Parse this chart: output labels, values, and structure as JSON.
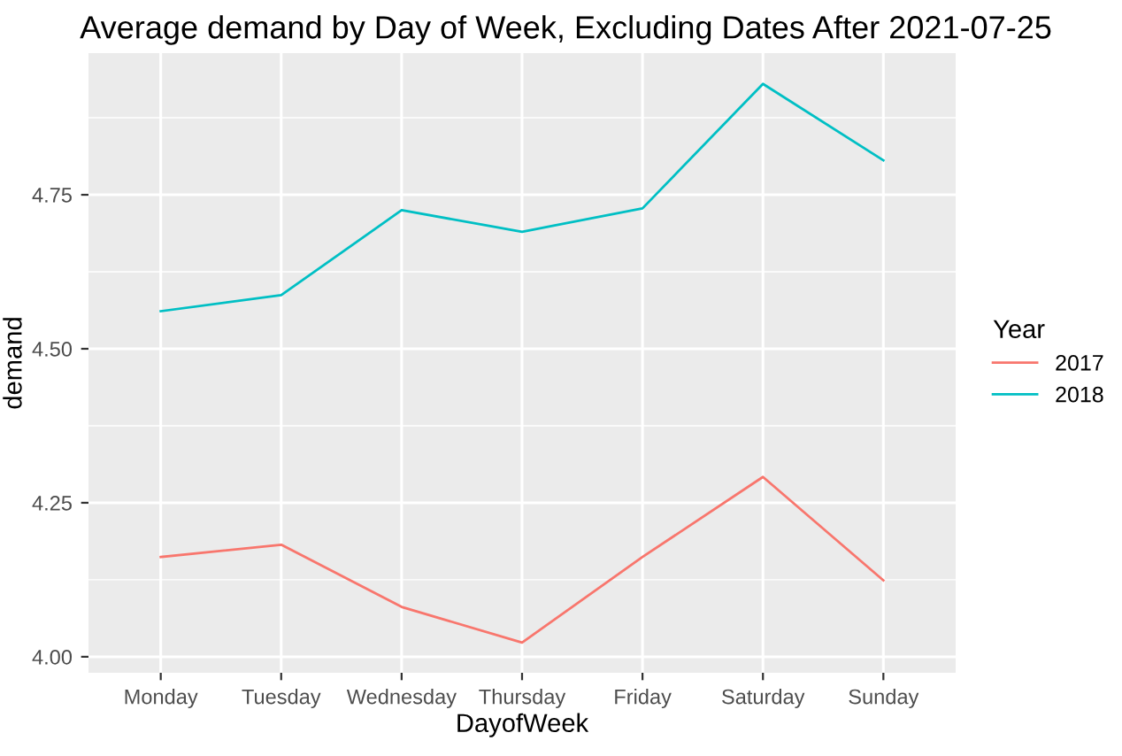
{
  "chart_data": {
    "type": "line",
    "title": "Average demand by Day of Week, Excluding Dates After 2021-07-25",
    "xlabel": "DayofWeek",
    "ylabel": "demand",
    "legend_title": "Year",
    "categories": [
      "Monday",
      "Tuesday",
      "Wednesday",
      "Thursday",
      "Friday",
      "Saturday",
      "Sunday"
    ],
    "series": [
      {
        "name": "2017",
        "color": "#f8766d",
        "values": [
          4.162,
          4.182,
          4.081,
          4.023,
          4.162,
          4.292,
          4.124
        ]
      },
      {
        "name": "2018",
        "color": "#00bfc4",
        "values": [
          4.561,
          4.587,
          4.725,
          4.69,
          4.728,
          4.93,
          4.806
        ]
      }
    ],
    "ylim": [
      3.974,
      4.98
    ],
    "yticks": [
      {
        "value": 4.0,
        "label": "4.00"
      },
      {
        "value": 4.25,
        "label": "4.25"
      },
      {
        "value": 4.5,
        "label": "4.50"
      },
      {
        "value": 4.75,
        "label": "4.75"
      }
    ],
    "grid": true,
    "legend": "right",
    "marker": "none",
    "line_style": "solid"
  }
}
